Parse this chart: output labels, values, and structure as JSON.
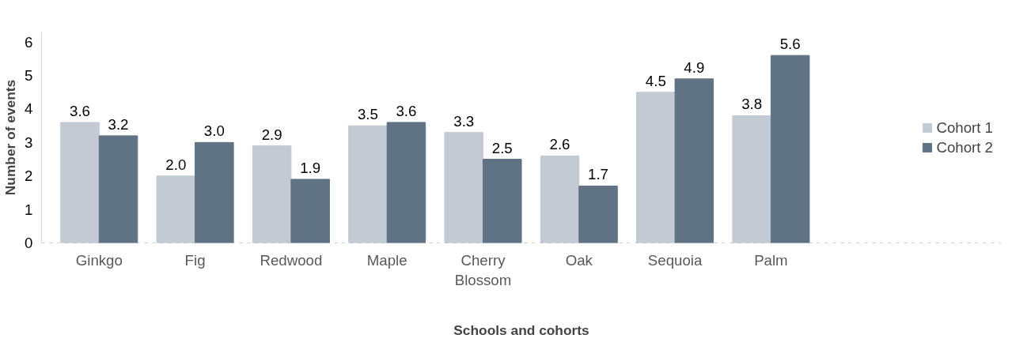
{
  "chart_data": {
    "type": "bar",
    "xlabel": "Schools and cohorts",
    "ylabel": "Number of events",
    "categories": [
      "Ginkgo",
      "Fig",
      "Redwood",
      "Maple",
      "Cherry Blossom",
      "Oak",
      "Sequoia",
      "Palm"
    ],
    "series": [
      {
        "name": "Cohort 1",
        "color": "#c4cad3",
        "values": [
          3.6,
          2.0,
          2.9,
          3.5,
          3.3,
          2.6,
          4.5,
          3.8
        ],
        "value_labels": [
          "3.6",
          "2.0",
          "2.9",
          "3.5",
          "3.3",
          "2.6",
          "4.5",
          "3.8"
        ]
      },
      {
        "name": "Cohort 2",
        "color": "#5f7384",
        "values": [
          3.2,
          3.0,
          1.9,
          3.6,
          2.5,
          1.7,
          4.9,
          5.6
        ],
        "value_labels": [
          "3.2",
          "3.0",
          "1.9",
          "3.6",
          "2.5",
          "1.7",
          "4.9",
          "5.6"
        ]
      }
    ],
    "ylim": [
      0,
      6.3
    ],
    "yticks": [
      0,
      1,
      2,
      3,
      4,
      5,
      6
    ],
    "grid": false,
    "legend": "right",
    "ref_lines": [
      {
        "axis": "y",
        "value": 0,
        "color": "#8fa3b8",
        "line_style": "dashed"
      }
    ]
  }
}
